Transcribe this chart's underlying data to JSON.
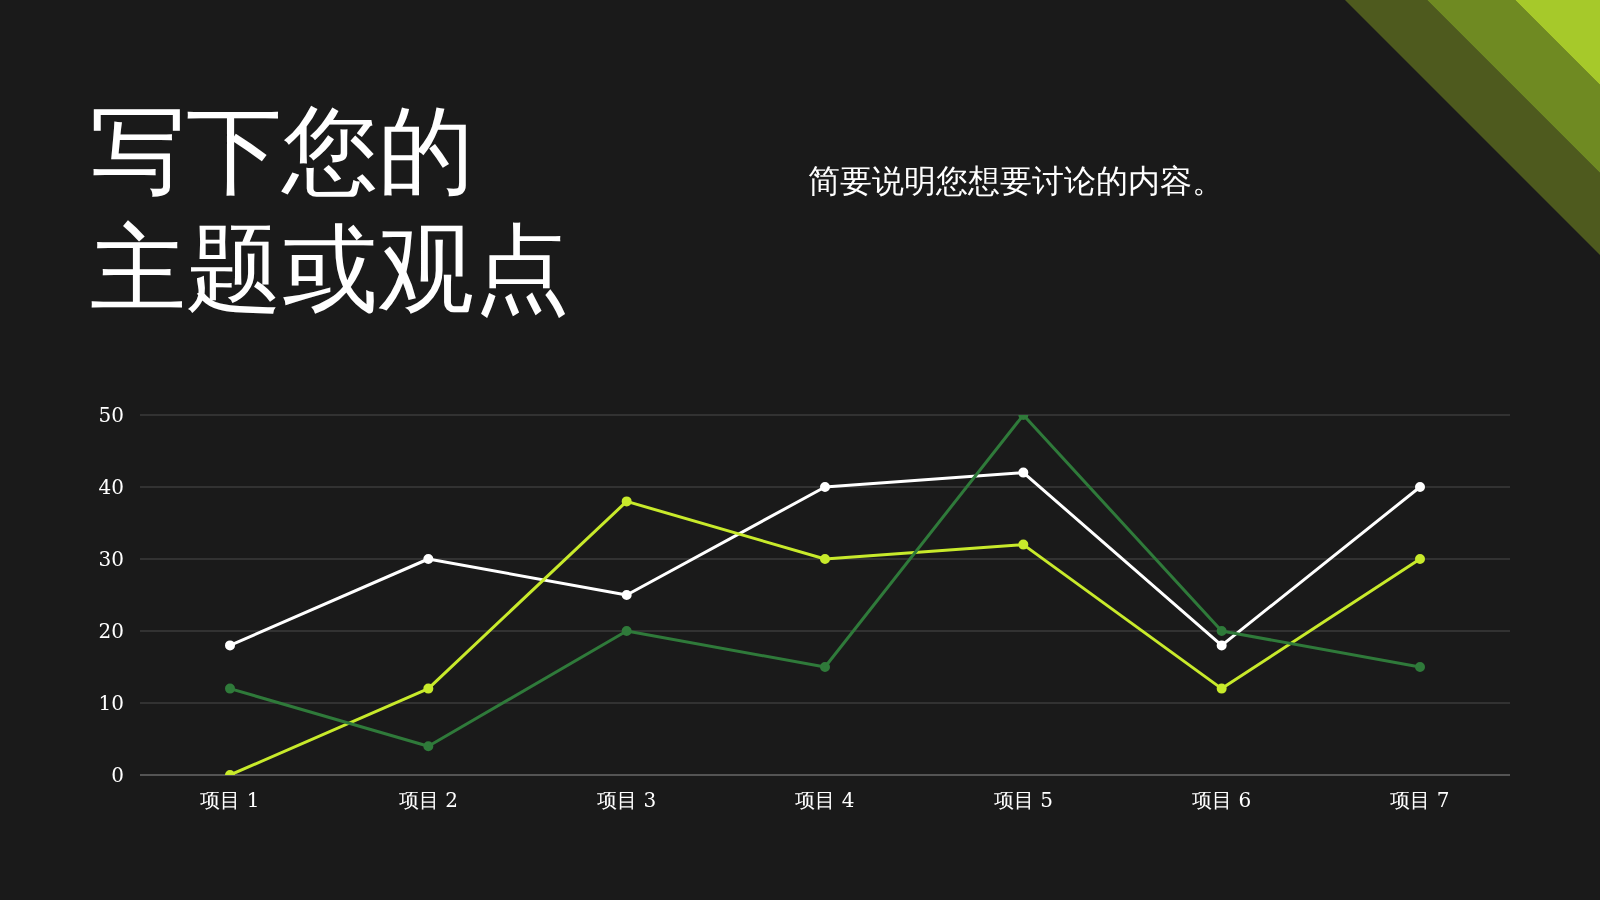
{
  "chart_data": {
    "type": "line",
    "title": "写下您的主题或观点",
    "subtitle": "简要说明您想要讨论的内容。",
    "categories": [
      "项目 1",
      "项目 2",
      "项目 3",
      "项目 4",
      "项目 5",
      "项目 6",
      "项目 7"
    ],
    "series": [
      {
        "color": "#ffffff",
        "values": [
          18,
          30,
          25,
          40,
          42,
          18,
          40
        ]
      },
      {
        "color": "#c8ea2b",
        "values": [
          0,
          12,
          38,
          30,
          32,
          12,
          30
        ]
      },
      {
        "color": "#2f7a3a",
        "values": [
          12,
          4,
          20,
          15,
          50,
          20,
          15
        ]
      }
    ],
    "ylim": [
      0,
      50
    ],
    "yticks": [
      0,
      10,
      20,
      30,
      40,
      50
    ],
    "grid": "y",
    "marker": "circle",
    "line_style": "solid"
  }
}
